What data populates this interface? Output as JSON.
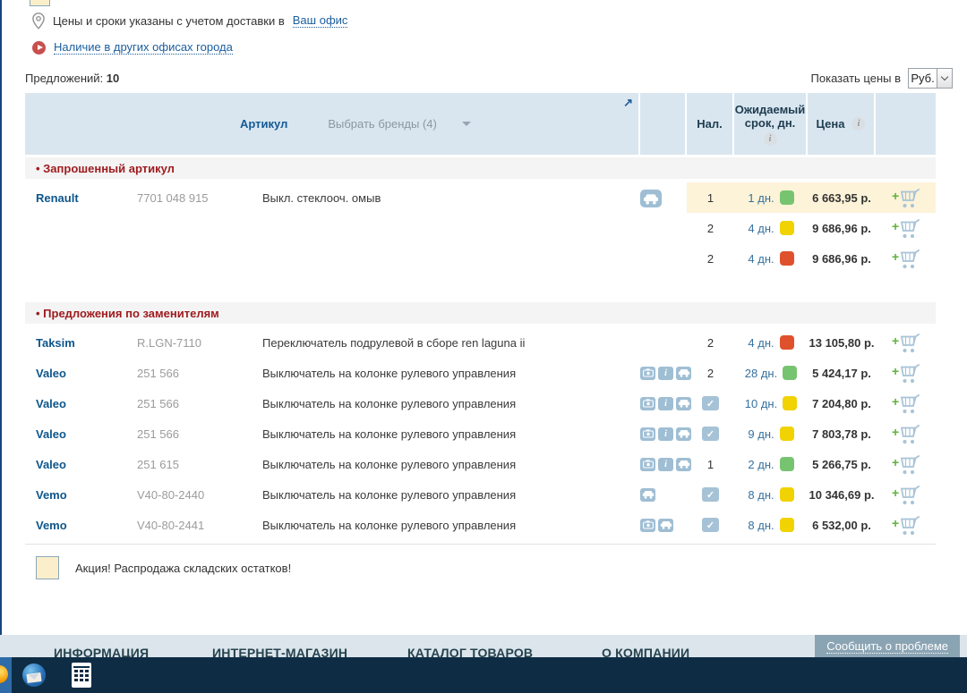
{
  "notices": {
    "delivery_text": "Цены и сроки указаны с учетом доставки в",
    "delivery_link": "Ваш офис",
    "offices_link": "Наличие в других офисах города"
  },
  "offers_summary": {
    "label": "Предложений:",
    "count": "10"
  },
  "currency": {
    "label": "Показать цены в",
    "value": "Руб."
  },
  "table": {
    "headers": {
      "article": "Артикул",
      "brands": "Выбрать бренды (4)",
      "availability": "Нал.",
      "expected_term": "Ожидаемый срок, дн.",
      "price": "Цена"
    },
    "sections": [
      {
        "title": "• Запрошенный артикул",
        "groups": [
          {
            "brand": "Renault",
            "article": "7701 048 915",
            "description": "Выкл. стеклооч. омыв",
            "icons": [
              "car"
            ],
            "icon_size": "lg",
            "offers": [
              {
                "availability": "1",
                "days": "1 дн.",
                "status": "green",
                "price": "6 663,95 р.",
                "highlighted": true
              },
              {
                "availability": "2",
                "days": "4 дн.",
                "status": "yellow",
                "price": "9 686,96 р.",
                "highlighted": false
              },
              {
                "availability": "2",
                "days": "4 дн.",
                "status": "red",
                "price": "9 686,96 р.",
                "highlighted": false
              }
            ]
          }
        ]
      },
      {
        "title": "• Предложения по заменителям",
        "groups": [
          {
            "brand": "Taksim",
            "article": "R.LGN-7110",
            "description": "Переключатель подрулевой в сборе ren laguna ii",
            "icons": [],
            "icon_size": "sm",
            "offers": [
              {
                "availability": "2",
                "days": "4 дн.",
                "status": "red",
                "price": "13 105,80 р.",
                "highlighted": false
              }
            ]
          },
          {
            "brand": "Valeo",
            "article": "251 566",
            "description": "Выключатель на колонке рулевого управления",
            "icons": [
              "photo",
              "info",
              "car"
            ],
            "icon_size": "sm",
            "offers": [
              {
                "availability": "2",
                "days": "28 дн.",
                "status": "green",
                "price": "5 424,17 р.",
                "highlighted": false
              }
            ]
          },
          {
            "brand": "Valeo",
            "article": "251 566",
            "description": "Выключатель на колонке рулевого управления",
            "icons": [
              "photo",
              "info",
              "car"
            ],
            "icon_size": "sm",
            "offers": [
              {
                "availability": "check",
                "days": "10 дн.",
                "status": "yellow",
                "price": "7 204,80 р.",
                "highlighted": false
              }
            ]
          },
          {
            "brand": "Valeo",
            "article": "251 566",
            "description": "Выключатель на колонке рулевого управления",
            "icons": [
              "photo",
              "info",
              "car"
            ],
            "icon_size": "sm",
            "offers": [
              {
                "availability": "check",
                "days": "9 дн.",
                "status": "yellow",
                "price": "7 803,78 р.",
                "highlighted": false
              }
            ]
          },
          {
            "brand": "Valeo",
            "article": "251 615",
            "description": "Выключатель на колонке рулевого управления",
            "icons": [
              "photo",
              "info",
              "car"
            ],
            "icon_size": "sm",
            "offers": [
              {
                "availability": "1",
                "days": "2 дн.",
                "status": "green",
                "price": "5 266,75 р.",
                "highlighted": false
              }
            ]
          },
          {
            "brand": "Vemo",
            "article": "V40-80-2440",
            "description": "Выключатель на колонке рулевого управления",
            "icons": [
              "car"
            ],
            "icon_size": "sm",
            "offers": [
              {
                "availability": "check",
                "days": "8 дн.",
                "status": "yellow",
                "price": "10 346,69 р.",
                "highlighted": false
              }
            ]
          },
          {
            "brand": "Vemo",
            "article": "V40-80-2441",
            "description": "Выключатель на колонке рулевого управления",
            "icons": [
              "photo",
              "car"
            ],
            "icon_size": "sm",
            "offers": [
              {
                "availability": "check",
                "days": "8 дн.",
                "status": "yellow",
                "price": "6 532,00 р.",
                "highlighted": false
              }
            ]
          }
        ]
      }
    ]
  },
  "status_colors": {
    "green": "#77c470",
    "yellow": "#f1d202",
    "red": "#df512c",
    "promo": "#fdf3d8"
  },
  "legend": {
    "text": "Акция! Распродажа складских остатков!"
  },
  "footer": {
    "columns": [
      "ИНФОРМАЦИЯ",
      "ИНТЕРНЕТ-МАГАЗИН",
      "КАТАЛОГ ТОВАРОВ",
      "О КОМПАНИИ"
    ],
    "report_button": "Сообщить о проблеме"
  }
}
